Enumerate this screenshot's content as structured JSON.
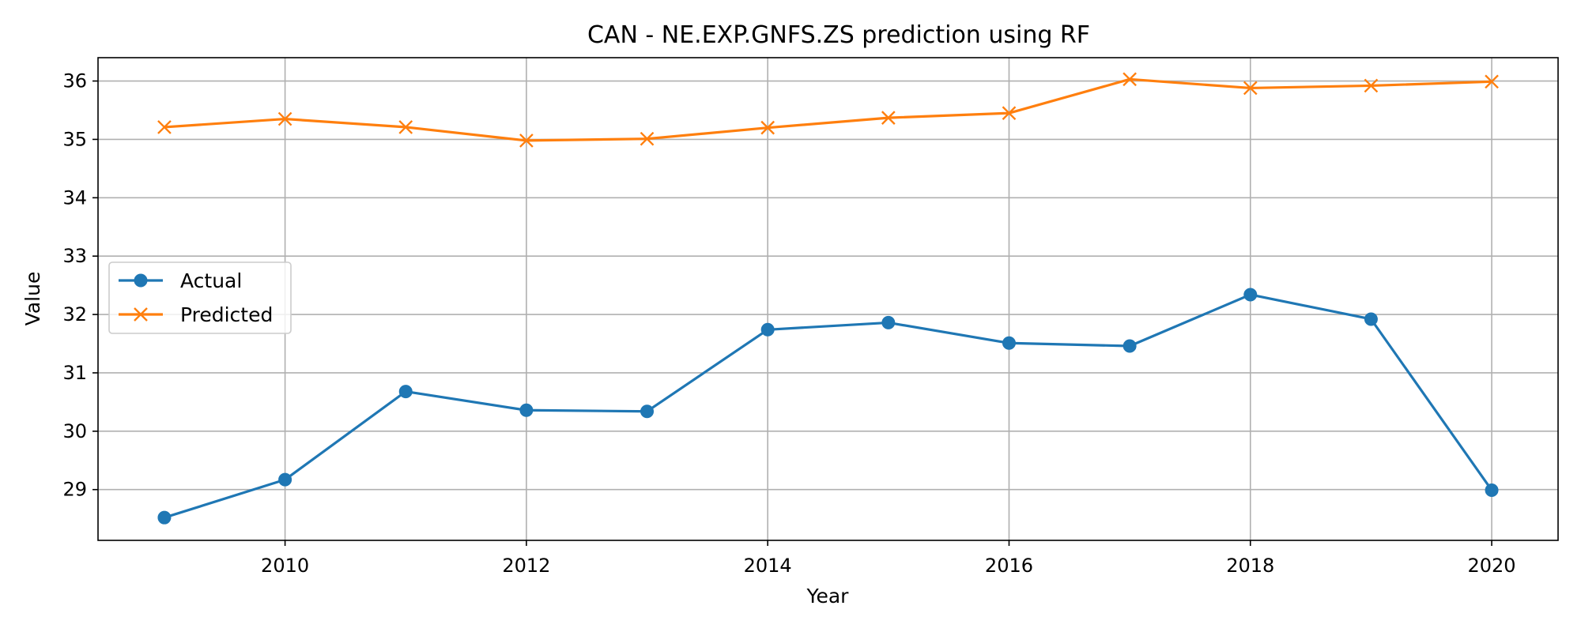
{
  "chart_data": {
    "type": "line",
    "title": "CAN - NE.EXP.GNFS.ZS prediction using RF",
    "xlabel": "Year",
    "ylabel": "Value",
    "x": [
      2009,
      2010,
      2011,
      2012,
      2013,
      2014,
      2015,
      2016,
      2017,
      2018,
      2019,
      2020
    ],
    "xlim": [
      2008.45,
      2020.55
    ],
    "ylim": [
      28.13,
      36.4
    ],
    "xticks": [
      2010,
      2012,
      2014,
      2016,
      2018,
      2020
    ],
    "yticks": [
      29,
      30,
      31,
      32,
      33,
      34,
      35,
      36
    ],
    "grid": true,
    "legend_position": "center-left",
    "series": [
      {
        "name": "Actual",
        "color": "#1f77b4",
        "marker": "circle",
        "values": [
          28.52,
          29.17,
          30.68,
          30.36,
          30.34,
          31.74,
          31.86,
          31.51,
          31.46,
          32.34,
          31.92,
          28.99
        ]
      },
      {
        "name": "Predicted",
        "color": "#ff7f0e",
        "marker": "x",
        "values": [
          35.21,
          35.35,
          35.21,
          34.98,
          35.01,
          35.2,
          35.37,
          35.45,
          36.03,
          35.88,
          35.92,
          35.99
        ]
      }
    ]
  }
}
